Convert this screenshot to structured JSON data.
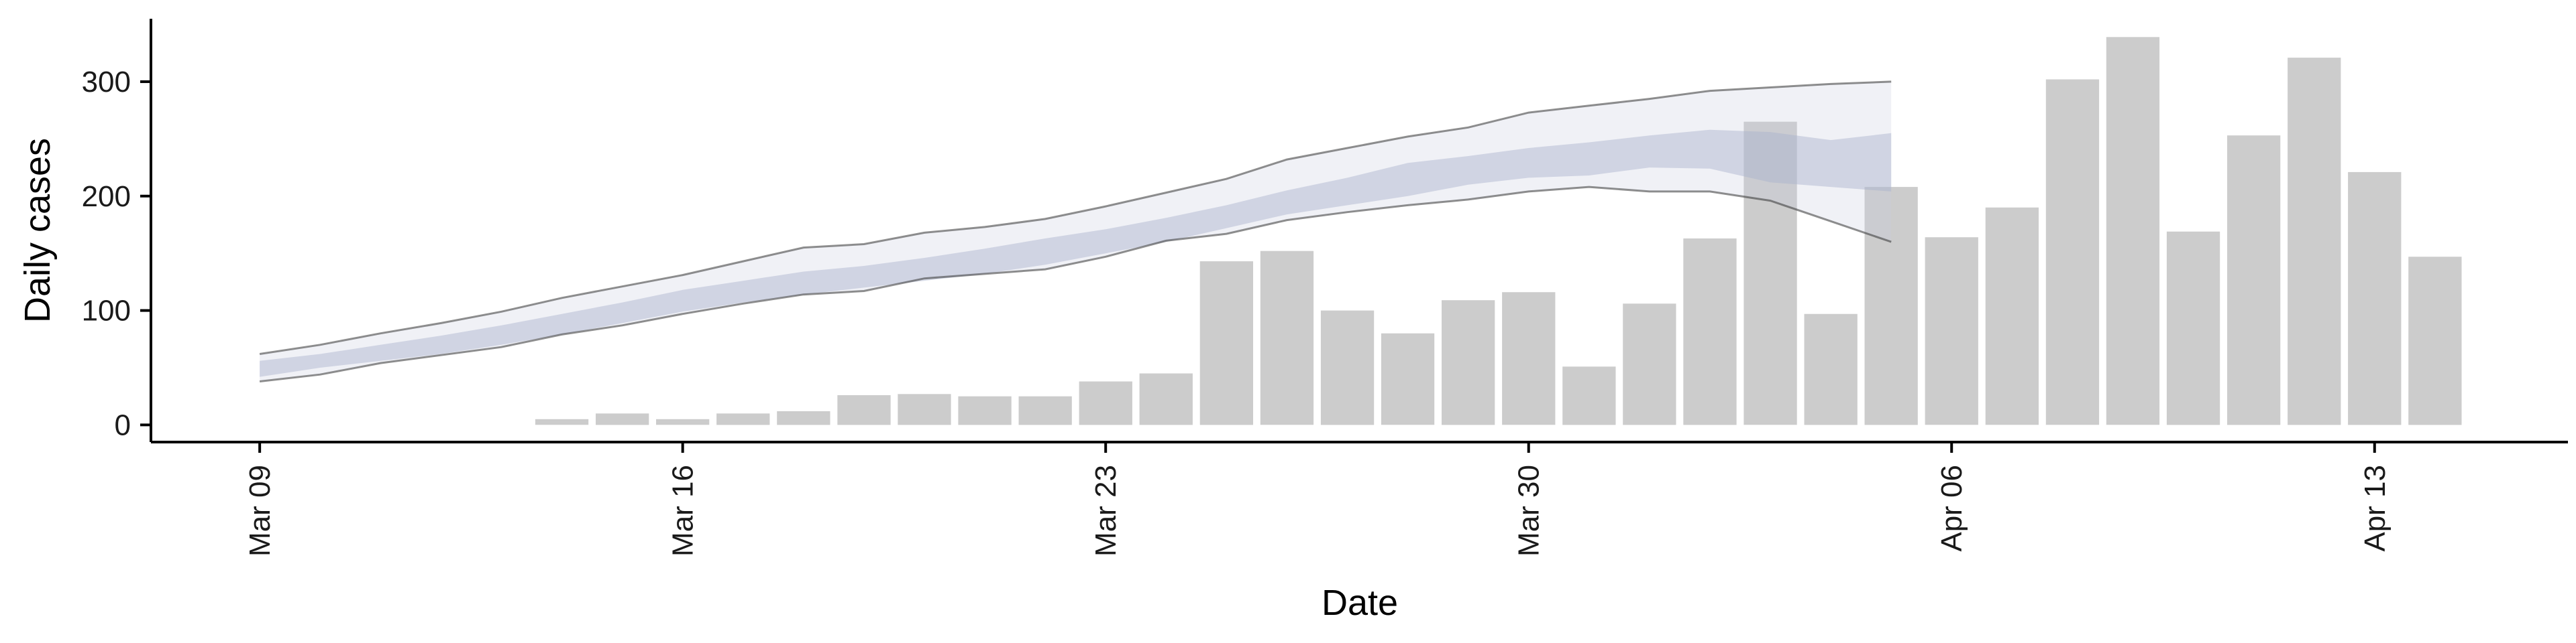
{
  "chart_data": {
    "type": "bar",
    "xlabel": "Date",
    "ylabel": "Daily cases",
    "ylim": [
      -15,
      355
    ],
    "yticks": [
      0,
      100,
      200,
      300
    ],
    "x_dates": [
      "Mar 09",
      "Mar 16",
      "Mar 23",
      "Mar 30",
      "Apr 06",
      "Apr 13"
    ],
    "x_tick_days": [
      0,
      7,
      14,
      21,
      28,
      35
    ],
    "xlim_days": [
      -1.8,
      38.2
    ],
    "grid": false,
    "colors": {
      "bars": "#cccccc",
      "band_outer": "#c9cedf",
      "band_inner": "#a9b1cb",
      "band_bound": "#333333"
    },
    "series": [
      {
        "type": "bar",
        "start_date": "Mar 14",
        "values": [
          5,
          10,
          5,
          10,
          12,
          26,
          27,
          25,
          25,
          38,
          45,
          143,
          152,
          100,
          80,
          109,
          116,
          51,
          106,
          163,
          265,
          97,
          208,
          164,
          190,
          302,
          339,
          169,
          253,
          321,
          221,
          147
        ]
      },
      {
        "type": "band",
        "start_date": "Mar 09",
        "upper": [
          62,
          70,
          80,
          89,
          99,
          111,
          121,
          131,
          143,
          155,
          158,
          168,
          173,
          180,
          191,
          203,
          215,
          232,
          242,
          252,
          260,
          273,
          279,
          285,
          292,
          295,
          298,
          300
        ],
        "inner_upper": [
          56,
          62,
          70,
          78,
          87,
          97,
          107,
          118,
          126,
          134,
          139,
          146,
          154,
          163,
          171,
          181,
          192,
          205,
          216,
          229,
          235,
          242,
          247,
          253,
          258,
          256,
          249,
          255
        ],
        "inner_lower": [
          42,
          50,
          56,
          62,
          70,
          79,
          89,
          99,
          107,
          114,
          120,
          126,
          132,
          140,
          150,
          160,
          172,
          184,
          192,
          200,
          210,
          216,
          218,
          225,
          224,
          212,
          208,
          204
        ],
        "lower": [
          38,
          44,
          54,
          61,
          68,
          79,
          87,
          97,
          106,
          114,
          117,
          128,
          132,
          136,
          147,
          161,
          167,
          179,
          186,
          192,
          197,
          204,
          208,
          204,
          204,
          196,
          178,
          160
        ]
      }
    ]
  }
}
